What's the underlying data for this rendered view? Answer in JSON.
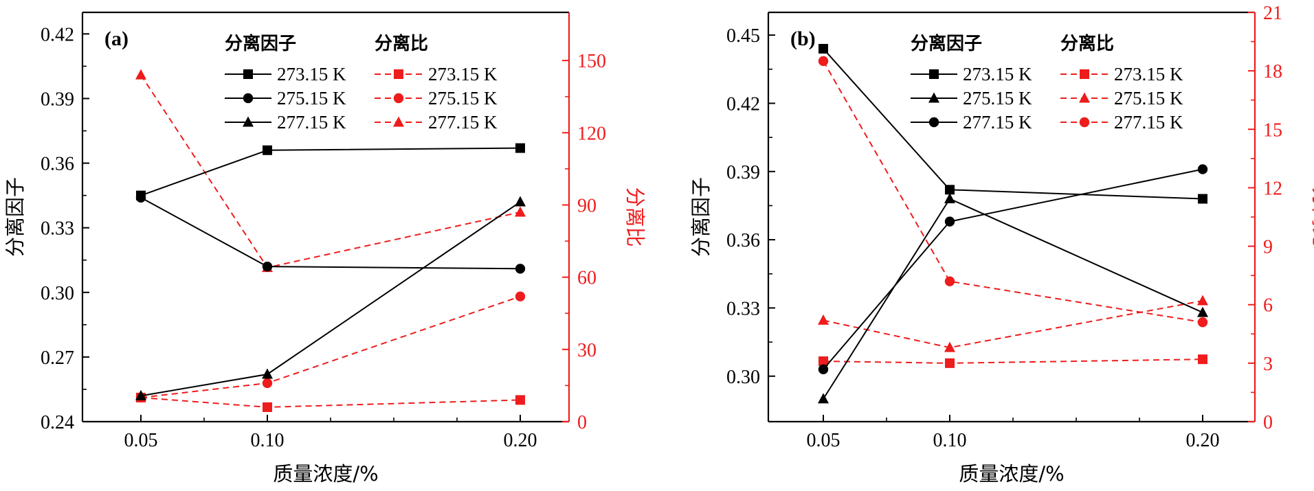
{
  "colors": {
    "black": "#000000",
    "red": "#ee1c1c"
  },
  "chart_data": [
    {
      "type": "line",
      "panel_label": "(a)",
      "x": [
        0.05,
        0.1,
        0.2
      ],
      "x_tick_labels": [
        "0.05",
        "0.10",
        "0.20"
      ],
      "xlabel": "质量浓度/%",
      "ylabel_left": "分离因子",
      "ylabel_right": "分离比",
      "ylim_left": [
        0.24,
        0.43
      ],
      "yticks_left": [
        0.24,
        0.27,
        0.3,
        0.33,
        0.36,
        0.39,
        0.42
      ],
      "ytick_labels_left": [
        "0.24",
        "0.27",
        "0.30",
        "0.33",
        "0.36",
        "0.39",
        "0.42"
      ],
      "ylim_right": [
        0,
        170
      ],
      "yticks_right": [
        0,
        30,
        60,
        90,
        120,
        150
      ],
      "ytick_labels_right": [
        "0",
        "30",
        "60",
        "90",
        "120",
        "150"
      ],
      "legend_left_title": "分离因子",
      "legend_right_title": "分离比",
      "series_factor": [
        {
          "name": "273.15 K",
          "marker": "square",
          "values": [
            0.345,
            0.366,
            0.367
          ]
        },
        {
          "name": "275.15 K",
          "marker": "circle",
          "values": [
            0.344,
            0.312,
            0.311
          ]
        },
        {
          "name": "277.15 K",
          "marker": "triangle",
          "values": [
            0.252,
            0.262,
            0.342
          ]
        }
      ],
      "series_ratio": [
        {
          "name": "273.15 K",
          "marker": "square",
          "values": [
            10,
            6,
            9
          ]
        },
        {
          "name": "275.15 K",
          "marker": "circle",
          "values": [
            10,
            16,
            52
          ]
        },
        {
          "name": "277.15 K",
          "marker": "triangle",
          "values": [
            144,
            64,
            87
          ]
        }
      ]
    },
    {
      "type": "line",
      "panel_label": "(b)",
      "x": [
        0.05,
        0.1,
        0.2
      ],
      "x_tick_labels": [
        "0.05",
        "0.10",
        "0.20"
      ],
      "xlabel": "质量浓度/%",
      "ylabel_left": "分离因子",
      "ylabel_right": "分离比",
      "ylim_left": [
        0.28,
        0.46
      ],
      "yticks_left": [
        0.3,
        0.33,
        0.36,
        0.39,
        0.42,
        0.45
      ],
      "ytick_labels_left": [
        "0.30",
        "0.33",
        "0.36",
        "0.39",
        "0.42",
        "0.45"
      ],
      "ylim_right": [
        0,
        21
      ],
      "yticks_right": [
        0,
        3,
        6,
        9,
        12,
        15,
        18,
        21
      ],
      "ytick_labels_right": [
        "0",
        "3",
        "6",
        "9",
        "12",
        "15",
        "18",
        "21"
      ],
      "legend_left_title": "分离因子",
      "legend_right_title": "分离比",
      "series_factor": [
        {
          "name": "273.15 K",
          "marker": "square",
          "values": [
            0.444,
            0.382,
            0.378
          ]
        },
        {
          "name": "275.15 K",
          "marker": "triangle",
          "values": [
            0.29,
            0.378,
            0.328
          ]
        },
        {
          "name": "277.15 K",
          "marker": "circle",
          "values": [
            0.303,
            0.368,
            0.391
          ]
        }
      ],
      "series_ratio": [
        {
          "name": "273.15 K",
          "marker": "square",
          "values": [
            3.1,
            3.0,
            3.2
          ]
        },
        {
          "name": "275.15 K",
          "marker": "triangle",
          "values": [
            5.2,
            3.8,
            6.2
          ]
        },
        {
          "name": "277.15 K",
          "marker": "circle",
          "values": [
            18.5,
            7.2,
            5.1
          ]
        }
      ]
    }
  ]
}
